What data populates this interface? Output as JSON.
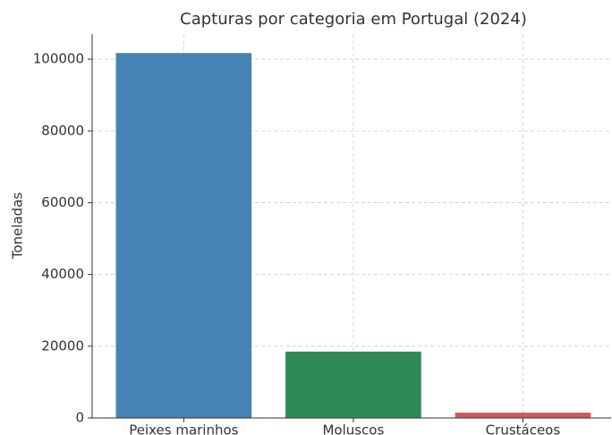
{
  "chart_data": {
    "type": "bar",
    "title": "Capturas por categoria em Portugal (2024)",
    "y_label": "Toneladas",
    "categories": [
      "Peixes marinhos",
      "Moluscos",
      "Crustáceos"
    ],
    "values": [
      101700,
      18500,
      1500
    ],
    "colors": [
      "#4682b4",
      "#2e8b57",
      "#cd5c5c"
    ],
    "ylim": [
      0,
      107000
    ],
    "yticks": [
      0,
      20000,
      40000,
      60000,
      80000,
      100000
    ],
    "grid": true
  }
}
